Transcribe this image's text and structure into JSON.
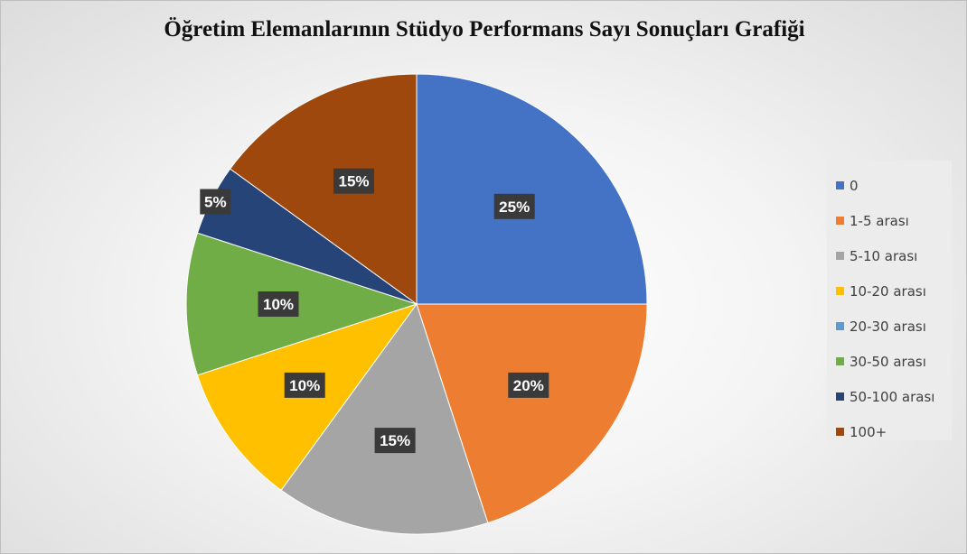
{
  "chart_data": {
    "type": "pie",
    "title": "Öğretim Elemanlarının Stüdyo Performans Sayı Sonuçları Grafiği",
    "categories": [
      "0",
      "1-5 arası",
      "5-10 arası",
      "10-20 arası",
      "20-30 arası",
      "30-50 arası",
      "50-100 arası",
      "100+"
    ],
    "values": [
      25,
      20,
      15,
      10,
      0,
      10,
      5,
      15
    ],
    "data_labels": [
      "25%",
      "20%",
      "15%",
      "10%",
      "",
      "10%",
      "5%",
      "15%"
    ],
    "value_unit": "%",
    "colors": [
      "#4472C4",
      "#ED7D31",
      "#A5A5A5",
      "#FFC000",
      "#5B9BD5",
      "#70AD47",
      "#264478",
      "#9E480E"
    ],
    "start_angle_deg": 0,
    "direction": "clockwise",
    "legend_position": "right"
  }
}
